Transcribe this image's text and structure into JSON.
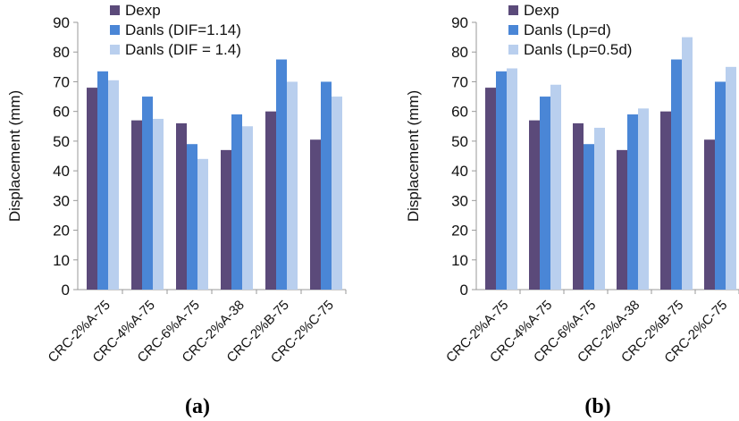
{
  "colors": {
    "dexp": "#5b4a7a",
    "danls1": "#4a86d6",
    "danls2": "#b9cfee"
  },
  "panel_labels": [
    "(a)",
    "(b)"
  ],
  "chart_data": [
    {
      "type": "bar",
      "ylabel": "Displacement (mm)",
      "ylim": [
        0,
        90
      ],
      "yticks": [
        0,
        10,
        20,
        30,
        40,
        50,
        60,
        70,
        80,
        90
      ],
      "categories": [
        "CRC-2%A-75",
        "CRC-4%A-75",
        "CRC-6%A-75",
        "CRC-2%A-38",
        "CRC-2%B-75",
        "CRC-2%C-75"
      ],
      "series": [
        {
          "name": "Dexp",
          "values": [
            68,
            57,
            56,
            47,
            60,
            50.5
          ]
        },
        {
          "name": "Danls (DIF=1.14)",
          "values": [
            73.5,
            65,
            49,
            59,
            77.5,
            70
          ]
        },
        {
          "name": "Danls (DIF = 1.4)",
          "values": [
            70.5,
            57.5,
            44,
            55,
            70,
            65
          ]
        }
      ],
      "legend": "top-left",
      "grid": false
    },
    {
      "type": "bar",
      "ylabel": "Displacement (mm)",
      "ylim": [
        0,
        90
      ],
      "yticks": [
        0,
        10,
        20,
        30,
        40,
        50,
        60,
        70,
        80,
        90
      ],
      "categories": [
        "CRC-2%A-75",
        "CRC-4%A-75",
        "CRC-6%A-75",
        "CRC-2%A-38",
        "CRC-2%B-75",
        "CRC-2%C-75"
      ],
      "series": [
        {
          "name": "Dexp",
          "values": [
            68,
            57,
            56,
            47,
            60,
            50.5
          ]
        },
        {
          "name": "Danls (Lp=d)",
          "values": [
            73.5,
            65,
            49,
            59,
            77.5,
            70
          ]
        },
        {
          "name": "Danls (Lp=0.5d)",
          "values": [
            74.5,
            69,
            54.5,
            61,
            85,
            75
          ]
        }
      ],
      "legend": "top-left",
      "grid": false
    }
  ]
}
